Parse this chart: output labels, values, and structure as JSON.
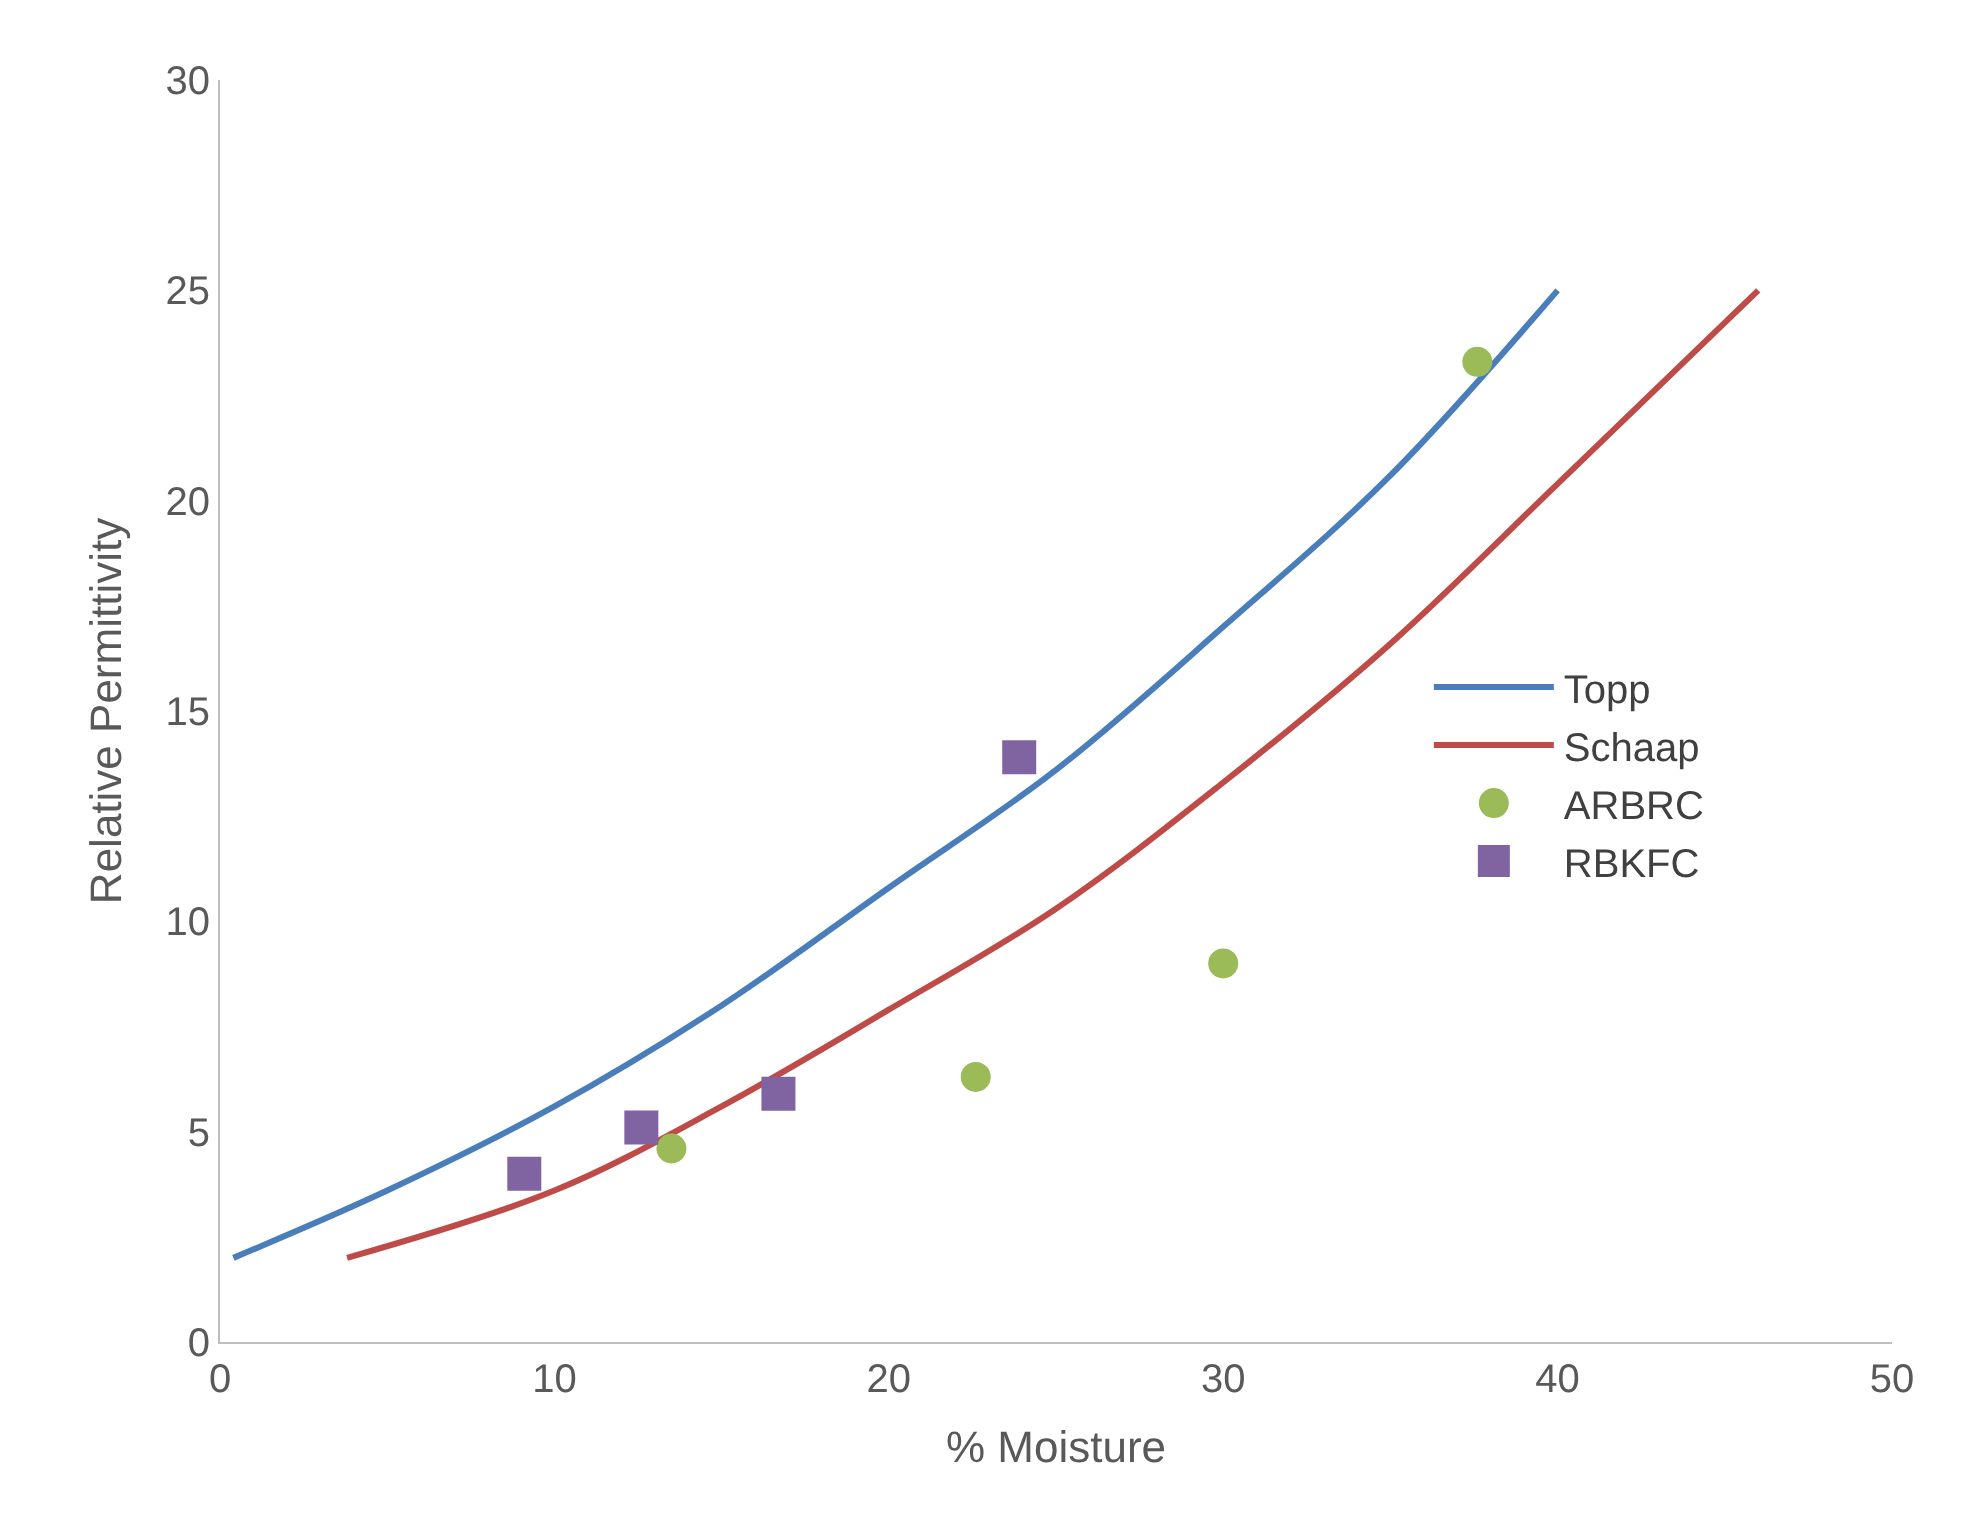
{
  "chart_data": {
    "type": "line",
    "xlabel": "% Moisture",
    "ylabel": "Relative Permittivity",
    "xlim": [
      0,
      50
    ],
    "xticks": [
      0,
      10,
      20,
      30,
      40,
      50
    ],
    "ylim": [
      0,
      30
    ],
    "yticks": [
      0,
      5,
      10,
      15,
      20,
      25,
      30
    ],
    "legend": "right",
    "series": [
      {
        "name": "Topp",
        "color": "#4a7ebb",
        "marker": "none",
        "x": [
          0.4,
          5,
          10,
          15,
          20,
          25,
          30,
          35,
          40
        ],
        "values": [
          2.0,
          3.6,
          5.6,
          8.0,
          10.8,
          13.6,
          17.0,
          20.6,
          25.0
        ]
      },
      {
        "name": "Schaap",
        "color": "#be4b48",
        "marker": "none",
        "x": [
          3.8,
          10,
          15,
          20,
          25,
          30,
          35,
          40,
          46
        ],
        "values": [
          2.0,
          3.6,
          5.6,
          7.9,
          10.3,
          13.3,
          16.6,
          20.4,
          25.0
        ]
      },
      {
        "name": "ARBRC",
        "type": "scatter",
        "color": "#9bbb59",
        "marker": "circle",
        "x": [
          13.5,
          22.6,
          30.0,
          37.6
        ],
        "values": [
          4.6,
          6.3,
          9.0,
          23.3
        ]
      },
      {
        "name": "RBKFC",
        "type": "scatter",
        "color": "#8064a2",
        "marker": "square",
        "x": [
          9.1,
          12.6,
          16.7,
          23.9
        ],
        "values": [
          4.0,
          5.1,
          5.9,
          13.9
        ]
      }
    ]
  }
}
